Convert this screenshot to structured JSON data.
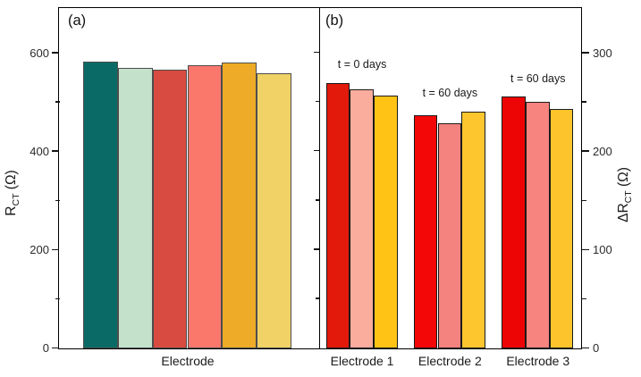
{
  "figure": {
    "background": "#ffffff",
    "axis_color": "#000000",
    "text_color": "#1a1a1a"
  },
  "chart_data": [
    {
      "type": "bar",
      "panel_tag": "(a)",
      "xlabel": "Electrode",
      "ylabel_parts": {
        "base": "R",
        "sub": "CT",
        "unit": " (Ω)"
      },
      "ylim": [
        0,
        690
      ],
      "yticks": [
        0,
        200,
        400,
        600
      ],
      "yticks_minor": [
        100,
        300,
        500
      ],
      "legend": "none",
      "grid": "off",
      "bar_border_color": "#4d4d4d",
      "bars": [
        {
          "value": 583,
          "color": "#0a6b66"
        },
        {
          "value": 570,
          "color": "#c4e1cc"
        },
        {
          "value": 566,
          "color": "#d74b40"
        },
        {
          "value": 575,
          "color": "#fa776c"
        },
        {
          "value": 581,
          "color": "#edab28"
        },
        {
          "value": 559,
          "color": "#f0d266"
        }
      ]
    },
    {
      "type": "bar",
      "panel_tag": "(b)",
      "ylabel_parts": {
        "base": "ΔR",
        "sub": "CT",
        "unit": " (Ω)"
      },
      "ylim": [
        0,
        345
      ],
      "yticks": [
        0,
        100,
        200,
        300
      ],
      "yticks_minor": [
        50,
        150,
        250
      ],
      "legend": "none",
      "grid": "off",
      "bar_border_color": "#1a1a1a",
      "groups": [
        {
          "category": "Electrode 1",
          "annotation": "t = 0 days",
          "bars": [
            {
              "value": 270,
              "color": "#e11a0b"
            },
            {
              "value": 263,
              "color": "#faac9d"
            },
            {
              "value": 257,
              "color": "#fec315"
            }
          ]
        },
        {
          "category": "Electrode 2",
          "annotation": "t = 60 days",
          "bars": [
            {
              "value": 237,
              "color": "#f40707"
            },
            {
              "value": 229,
              "color": "#f4827e"
            },
            {
              "value": 241,
              "color": "#fdc62f"
            }
          ]
        },
        {
          "category": "Electrode 3",
          "annotation": "t = 60 days",
          "bars": [
            {
              "value": 256,
              "color": "#ed0505"
            },
            {
              "value": 251,
              "color": "#f7847f"
            },
            {
              "value": 243,
              "color": "#fdc42b"
            }
          ]
        }
      ]
    }
  ]
}
